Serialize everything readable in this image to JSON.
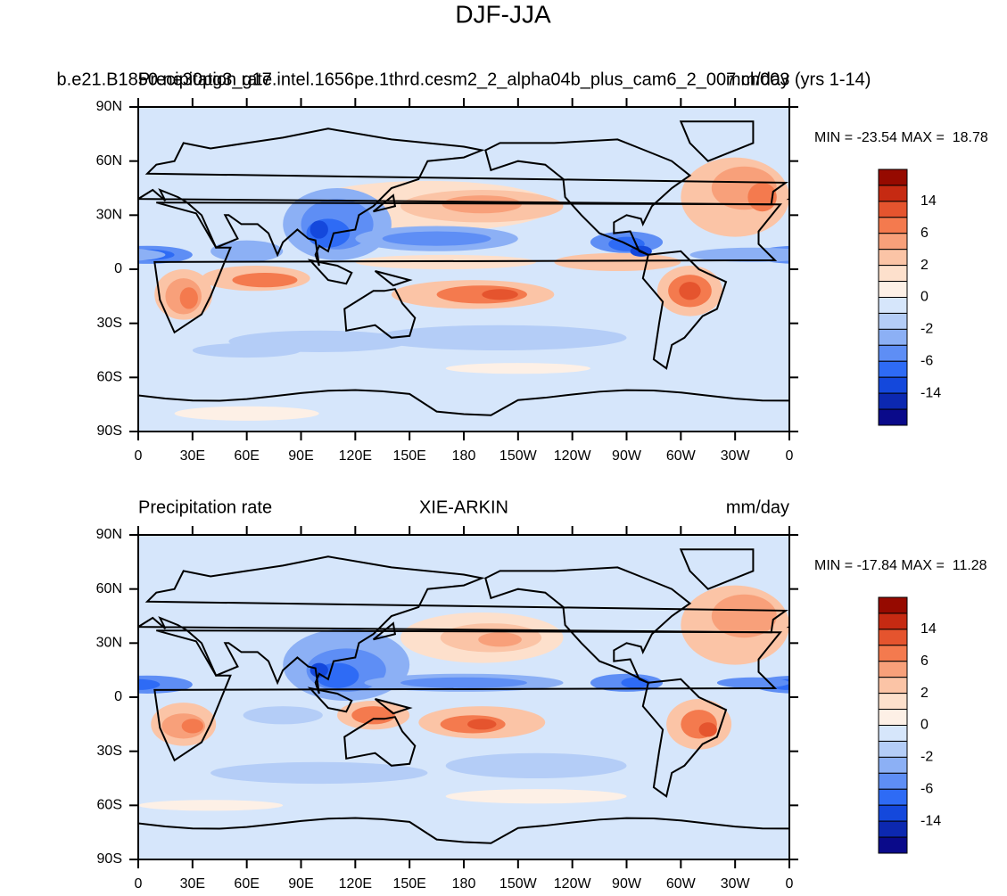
{
  "title": "DJF-JJA",
  "panels": [
    {
      "left_string": "Precipitation rate",
      "center_string": "b.e21.B1850.ne30pg3_g17.intel.1656pe.1thrd.cesm2_2_alpha04b_plus_cam6_2_007.ch003 (yrs 1-14)",
      "right_string": "mm/day",
      "min_max": "MIN = -23.54 MAX =  18.78"
    },
    {
      "left_string": "Precipitation rate",
      "center_string": "XIE-ARKIN",
      "right_string": "mm/day",
      "min_max": "MIN = -17.84 MAX =  11.28"
    }
  ],
  "yticks": [
    "90N",
    "60N",
    "30N",
    "0",
    "30S",
    "60S",
    "90S"
  ],
  "xticks": [
    "0",
    "30E",
    "60E",
    "90E",
    "120E",
    "150E",
    "180",
    "150W",
    "120W",
    "90W",
    "60W",
    "30W",
    "0"
  ],
  "colorbar": {
    "labels": [
      "14",
      "6",
      "2",
      "0",
      "-2",
      "-6",
      "-14"
    ],
    "colors": [
      "#960a00",
      "#c62a12",
      "#e5542e",
      "#f47a4e",
      "#f8a07a",
      "#fbc4a6",
      "#fde0cc",
      "#fdf0e6",
      "#d6e6fb",
      "#b4cdf7",
      "#8cb0f5",
      "#5e8ef5",
      "#2e6bf5",
      "#1448dc",
      "#0c28b0",
      "#0a0a8a"
    ]
  }
}
